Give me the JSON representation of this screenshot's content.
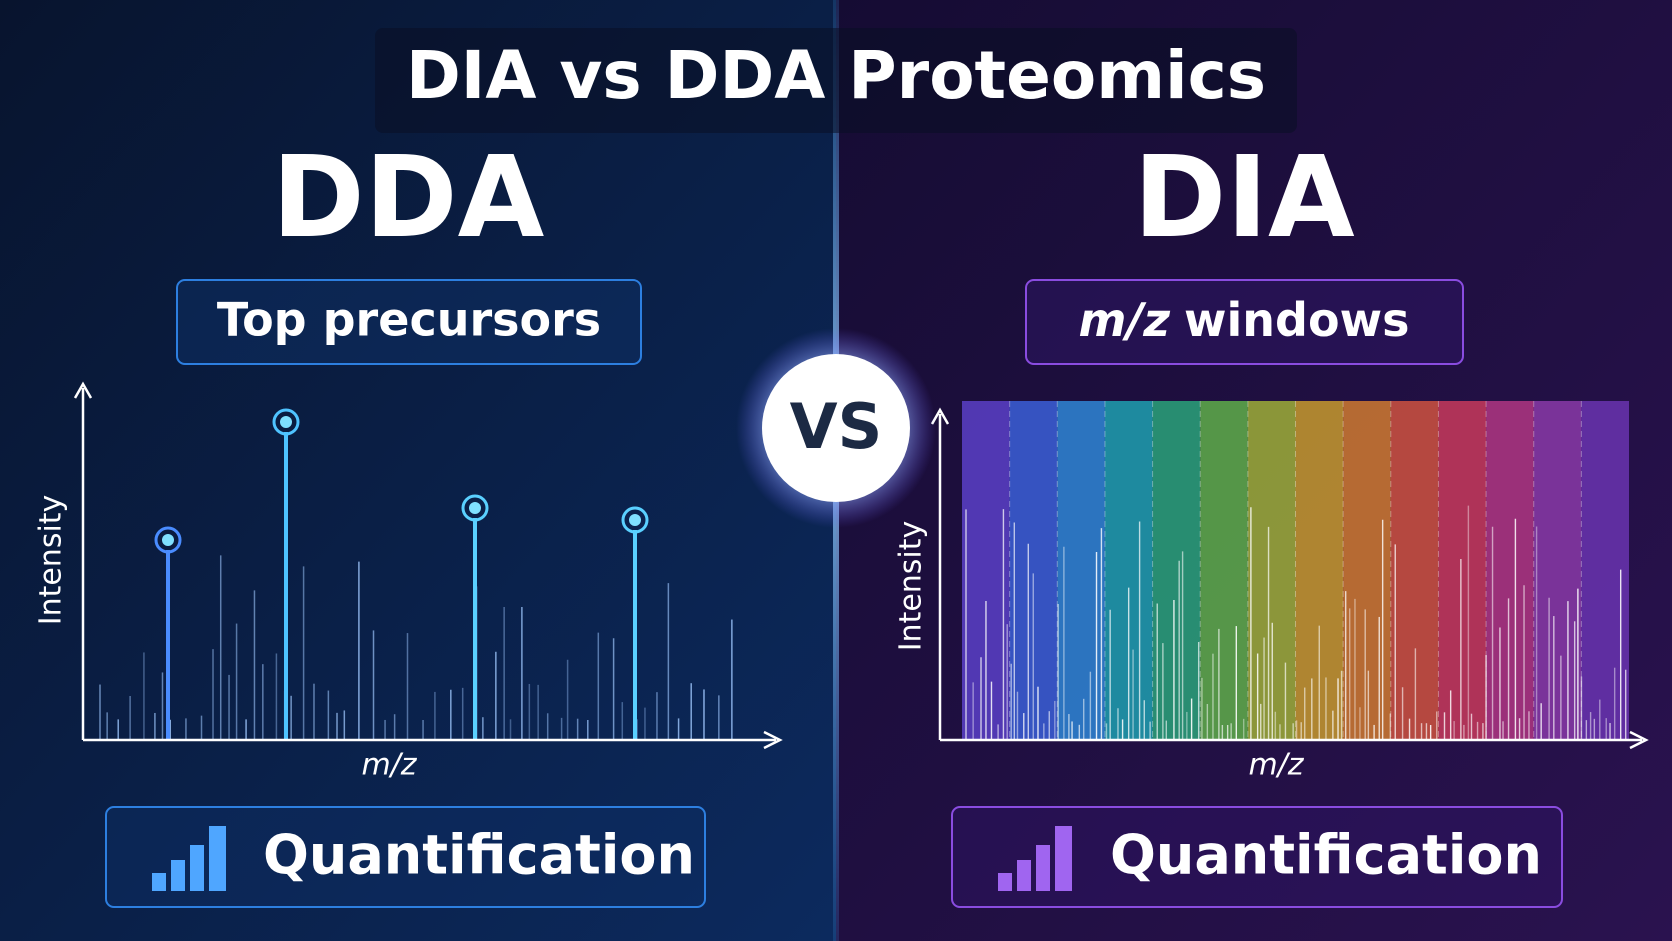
{
  "title": "DIA vs DDA Proteomics",
  "versus": "VS",
  "panels": [
    {
      "heading": "DDA",
      "method_label": "Top precursors",
      "y_axis_label": "Intensity",
      "x_axis_label": "m/z",
      "footer": "Quantification"
    },
    {
      "heading": "DIA",
      "method_label_italic": "m/z",
      "method_label_rest": "windows",
      "y_axis_label": "Intensity",
      "x_axis_label": "m/z",
      "footer": "Quantification"
    }
  ]
}
